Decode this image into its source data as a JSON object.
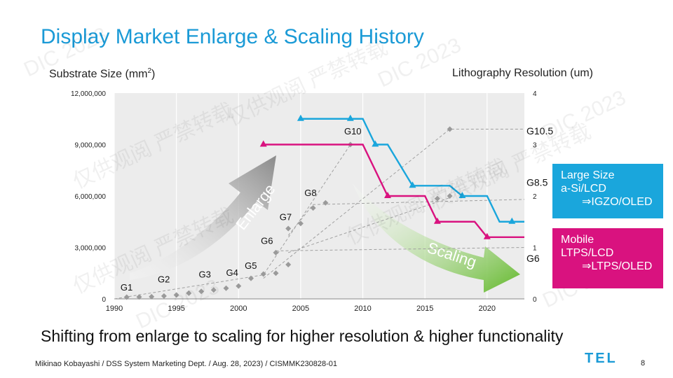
{
  "slide": {
    "title": "Display Market Enlarge & Scaling History",
    "subtitle": "Shifting from enlarge to scaling for higher resolution & higher functionality",
    "footer": "Mikinao Kobayashi / DSS System Marketing Dept. / Aug. 28, 2023) / CISMMK230828-01",
    "logo": "TEL",
    "page_number": "8",
    "watermark_texts": [
      "DIC 2023",
      "仅供观阅 严禁转载"
    ]
  },
  "legend": {
    "large": {
      "line1": "Large Size",
      "line2": "a-Si/LCD",
      "line3": "⇒IGZO/OLED",
      "color": "#1aa6dc"
    },
    "mobile": {
      "line1": "Mobile",
      "line2": "LTPS/LCD",
      "line3": "⇒LTPS/OLED",
      "color": "#d9127f"
    }
  },
  "chart_data": {
    "type": "scatter",
    "xlim": [
      1990,
      2023
    ],
    "x_ticks": [
      "1990",
      "1995",
      "2000",
      "2005",
      "2010",
      "2015",
      "2020"
    ],
    "left_axis": {
      "label": "Substrate Size  (mm",
      "label_sup": "2",
      "label_end": ")",
      "ylim": [
        0,
        12000000
      ],
      "ticks": [
        "0",
        "3,000,000",
        "6,000,000",
        "9,000,000",
        "12,000,000"
      ]
    },
    "right_axis": {
      "label": "Lithography Resolution (um)",
      "ylim": [
        0,
        4
      ],
      "ticks": [
        "0",
        "1",
        "2",
        "3",
        "4"
      ]
    },
    "arrow_labels": {
      "enlarge": "Enlarge",
      "scaling": "Scaling"
    },
    "series": [
      {
        "name": "Substrate size",
        "axis": "left",
        "color": "#9a9a9a",
        "points": [
          [
            1991,
            100000
          ],
          [
            1992,
            110000
          ],
          [
            1993,
            130000
          ],
          [
            1994,
            170000
          ],
          [
            1995,
            230000
          ],
          [
            1996,
            330000
          ],
          [
            1997,
            440000
          ],
          [
            1998,
            520000
          ],
          [
            1999,
            620000
          ],
          [
            2000,
            750000
          ],
          [
            2001,
            1200000
          ],
          [
            2002,
            1450000
          ],
          [
            2003,
            1500000
          ],
          [
            2004,
            2000000
          ],
          [
            2003,
            2700000
          ],
          [
            2004,
            4100000
          ],
          [
            2005,
            4400000
          ],
          [
            2006,
            5300000
          ],
          [
            2007,
            5600000
          ],
          [
            2009,
            9000000
          ],
          [
            2016,
            5850000
          ],
          [
            2017,
            6000000
          ],
          [
            2017,
            9900000
          ]
        ]
      },
      {
        "name": "Large Size",
        "axis": "right",
        "color": "#1aa6dc",
        "points": [
          [
            2005,
            3.5
          ],
          [
            2009,
            3.5
          ],
          [
            2011,
            3.0
          ],
          [
            2014,
            2.2
          ],
          [
            2018,
            2.0
          ],
          [
            2022,
            1.5
          ]
        ],
        "line": [
          [
            2005,
            3.5
          ],
          [
            2010,
            3.5
          ],
          [
            2011,
            3.0
          ],
          [
            2012,
            3.0
          ],
          [
            2014,
            2.2
          ],
          [
            2017,
            2.2
          ],
          [
            2018,
            2.0
          ],
          [
            2020,
            2.0
          ],
          [
            2021,
            1.5
          ],
          [
            2023,
            1.5
          ]
        ]
      },
      {
        "name": "Mobile",
        "axis": "right",
        "color": "#d9127f",
        "points": [
          [
            2002,
            3.0
          ],
          [
            2012,
            2.0
          ],
          [
            2016,
            1.5
          ],
          [
            2020,
            1.2
          ]
        ],
        "line": [
          [
            2002,
            3.0
          ],
          [
            2010,
            3.0
          ],
          [
            2012,
            2.0
          ],
          [
            2015,
            2.0
          ],
          [
            2016,
            1.5
          ],
          [
            2019,
            1.5
          ],
          [
            2020,
            1.2
          ],
          [
            2023,
            1.2
          ]
        ]
      }
    ],
    "gen_labels": [
      {
        "text": "G1",
        "x": 1990.5,
        "y": 500000
      },
      {
        "text": "G2",
        "x": 1993.5,
        "y": 950000
      },
      {
        "text": "G3",
        "x": 1996.8,
        "y": 1250000
      },
      {
        "text": "G4",
        "x": 1999,
        "y": 1350000
      },
      {
        "text": "G5",
        "x": 2000.5,
        "y": 1750000
      },
      {
        "text": "G6",
        "x": 2001.8,
        "y": 3200000
      },
      {
        "text": "G7",
        "x": 2003.3,
        "y": 4600000
      },
      {
        "text": "G8",
        "x": 2005.3,
        "y": 6000000
      },
      {
        "text": "G10",
        "x": 2008.5,
        "y": 9600000
      }
    ],
    "right_labels": [
      {
        "text": "G10.5",
        "y": 3.2
      },
      {
        "text": "G8.5",
        "y": 2.2
      },
      {
        "text": "G6",
        "y": 0.72
      }
    ],
    "dashed_trends": [
      {
        "axis": "left",
        "points": [
          [
            1990,
            0
          ],
          [
            2002,
            1400000
          ],
          [
            2009,
            9000000
          ]
        ]
      },
      {
        "axis": "left",
        "points": [
          [
            2002,
            1200000
          ],
          [
            2017,
            9900000
          ],
          [
            2023,
            9900000
          ]
        ]
      },
      {
        "axis": "left",
        "points": [
          [
            2004,
            3700000
          ],
          [
            2006,
            5500000
          ],
          [
            2023,
            5800000
          ]
        ]
      },
      {
        "axis": "left",
        "points": [
          [
            2003,
            2800000
          ],
          [
            2023,
            3000000
          ]
        ]
      },
      {
        "axis": "left",
        "points": [
          [
            2004,
            2700000
          ],
          [
            2017,
            5900000
          ]
        ]
      }
    ]
  }
}
